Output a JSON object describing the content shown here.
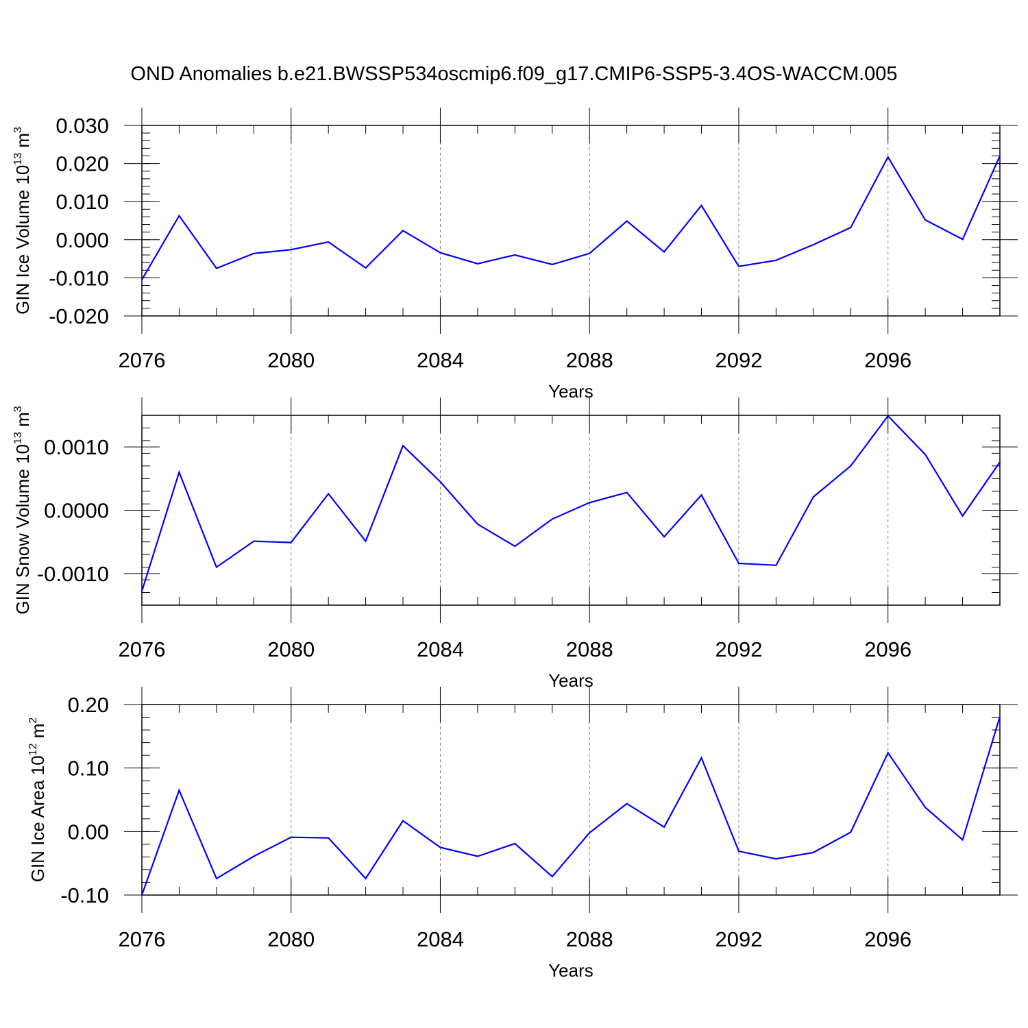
{
  "title": "OND Anomalies b.e21.BWSSP534oscmip6.f09_g17.CMIP6-SSP5-3.4OS-WACCM.005",
  "colors": {
    "line": "#0000ff",
    "axis": "#000000",
    "grid": "#7f7f7f"
  },
  "chart_data": [
    {
      "type": "line",
      "ylabel_main": "GIN Ice Volume 10",
      "ylabel_exp": "13",
      "ylabel_unit": " m",
      "ylabel_unit_exp": "3",
      "xlabel": "Years",
      "xlim": [
        2076,
        2099
      ],
      "ylim": [
        -0.02,
        0.03
      ],
      "xticks": [
        2076,
        2080,
        2084,
        2088,
        2092,
        2096
      ],
      "xtick_labels": [
        "2076",
        "2080",
        "2084",
        "2088",
        "2092",
        "2096"
      ],
      "yticks": [
        -0.02,
        -0.01,
        0.0,
        0.01,
        0.02,
        0.03
      ],
      "ytick_labels": [
        "-0.020",
        "-0.010",
        "0.000",
        "0.010",
        "0.020",
        "0.030"
      ],
      "y_minor_step": 0.002,
      "grid": "vertical dashed at major x ticks",
      "series": [
        {
          "name": "GIN Ice Volume",
          "x": [
            2076,
            2077,
            2078,
            2079,
            2080,
            2081,
            2082,
            2083,
            2084,
            2085,
            2086,
            2087,
            2088,
            2089,
            2090,
            2091,
            2092,
            2093,
            2094,
            2095,
            2096,
            2097,
            2098,
            2099
          ],
          "values": [
            -0.0105,
            0.0063,
            -0.0075,
            -0.0036,
            -0.0026,
            -0.0006,
            -0.0074,
            0.0024,
            -0.0034,
            -0.0063,
            -0.004,
            -0.0065,
            -0.0036,
            0.0049,
            -0.0032,
            0.009,
            -0.007,
            -0.0054,
            -0.0013,
            0.0032,
            0.0217,
            0.0052,
            0.0001,
            0.022
          ]
        }
      ]
    },
    {
      "type": "line",
      "ylabel_main": "GIN Snow Volume 10",
      "ylabel_exp": "13",
      "ylabel_unit": " m",
      "ylabel_unit_exp": "3",
      "xlabel": "Years",
      "xlim": [
        2076,
        2099
      ],
      "ylim": [
        -0.0015,
        0.0015
      ],
      "xticks": [
        2076,
        2080,
        2084,
        2088,
        2092,
        2096
      ],
      "xtick_labels": [
        "2076",
        "2080",
        "2084",
        "2088",
        "2092",
        "2096"
      ],
      "yticks": [
        -0.001,
        0.0,
        0.001
      ],
      "ytick_labels": [
        "-0.0010",
        "0.0000",
        "0.0010"
      ],
      "y_minor_step": 0.0002,
      "grid": "vertical dashed at major x ticks",
      "series": [
        {
          "name": "GIN Snow Volume",
          "x": [
            2076,
            2077,
            2078,
            2079,
            2080,
            2081,
            2082,
            2083,
            2084,
            2085,
            2086,
            2087,
            2088,
            2089,
            2090,
            2091,
            2092,
            2093,
            2094,
            2095,
            2096,
            2097,
            2098,
            2099
          ],
          "values": [
            -0.00128,
            0.0006,
            -0.0009,
            -0.00049,
            -0.00051,
            0.00026,
            -0.00049,
            0.00102,
            0.00045,
            -0.00022,
            -0.00057,
            -0.00014,
            0.00012,
            0.00028,
            -0.00042,
            0.00024,
            -0.00084,
            -0.00087,
            0.00021,
            0.0007,
            0.00149,
            0.00088,
            -9e-05,
            0.00076
          ]
        }
      ]
    },
    {
      "type": "line",
      "ylabel_main": "GIN Ice Area 10",
      "ylabel_exp": "12",
      "ylabel_unit": " m",
      "ylabel_unit_exp": "2",
      "xlabel": "Years",
      "xlim": [
        2076,
        2099
      ],
      "ylim": [
        -0.1,
        0.2
      ],
      "xticks": [
        2076,
        2080,
        2084,
        2088,
        2092,
        2096
      ],
      "xtick_labels": [
        "2076",
        "2080",
        "2084",
        "2088",
        "2092",
        "2096"
      ],
      "yticks": [
        -0.1,
        0.0,
        0.1,
        0.2
      ],
      "ytick_labels": [
        "-0.10",
        "0.00",
        "0.10",
        "0.20"
      ],
      "y_minor_step": 0.02,
      "grid": "vertical dashed at major x ticks",
      "series": [
        {
          "name": "GIN Ice Area",
          "x": [
            2076,
            2077,
            2078,
            2079,
            2080,
            2081,
            2082,
            2083,
            2084,
            2085,
            2086,
            2087,
            2088,
            2089,
            2090,
            2091,
            2092,
            2093,
            2094,
            2095,
            2096,
            2097,
            2098,
            2099
          ],
          "values": [
            -0.1,
            0.065,
            -0.074,
            -0.039,
            -0.009,
            -0.01,
            -0.074,
            0.017,
            -0.025,
            -0.039,
            -0.019,
            -0.071,
            -0.002,
            0.044,
            0.007,
            0.116,
            -0.031,
            -0.043,
            -0.033,
            -0.001,
            0.124,
            0.038,
            -0.013,
            0.181
          ]
        }
      ]
    }
  ]
}
